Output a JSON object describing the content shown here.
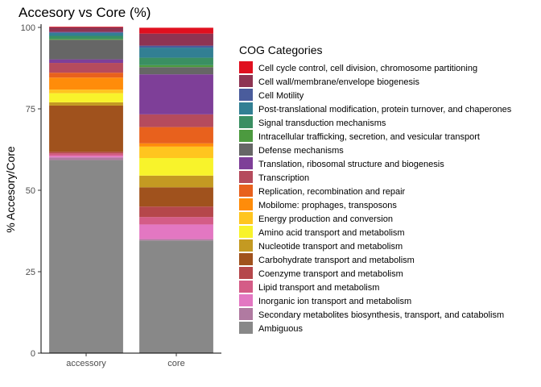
{
  "chart_data": {
    "type": "bar",
    "stacked": true,
    "title": "Accesory vs Core (%)",
    "xlabel": "",
    "ylabel": "% Accesory/Core",
    "ylim": [
      0,
      100
    ],
    "yticks": [
      0,
      25,
      50,
      75,
      100
    ],
    "categories": [
      "accessory",
      "core"
    ],
    "legend_title": "COG Categories",
    "legend_position": "right",
    "grid": false,
    "series": [
      {
        "name": "Ambiguous",
        "color": "#888888",
        "values": [
          59.3,
          34.6
        ]
      },
      {
        "name": "Secondary metabolites biosynthesis, transport, and catabolism",
        "color": "#B07AA1",
        "values": [
          0.8,
          0.4
        ]
      },
      {
        "name": "Inorganic ion transport and metabolism",
        "color": "#E377C2",
        "values": [
          0.5,
          4.5
        ]
      },
      {
        "name": "Lipid transport and metabolism",
        "color": "#D45C87",
        "values": [
          0.7,
          2.3
        ]
      },
      {
        "name": "Coenzyme transport and metabolism",
        "color": "#B5474B",
        "values": [
          0.5,
          3.2
        ]
      },
      {
        "name": "Carbohydrate transport and metabolism",
        "color": "#A0521D",
        "values": [
          14.2,
          5.9
        ]
      },
      {
        "name": "Nucleotide transport and metabolism",
        "color": "#C49A22",
        "values": [
          1.0,
          3.6
        ]
      },
      {
        "name": "Amino acid transport and metabolism",
        "color": "#F8F32B",
        "values": [
          2.8,
          5.4
        ]
      },
      {
        "name": "Energy production and conversion",
        "color": "#FFC51F",
        "values": [
          1.1,
          3.5
        ]
      },
      {
        "name": "Mobilome: prophages, transposons",
        "color": "#FF8C0A",
        "values": [
          3.7,
          1.0
        ]
      },
      {
        "name": "Replication, recombination and repair",
        "color": "#E8611D",
        "values": [
          1.5,
          5.0
        ]
      },
      {
        "name": "Transcription",
        "color": "#B54B5D",
        "values": [
          3.0,
          3.9
        ]
      },
      {
        "name": "Translation, ribosomal structure and biogenesis",
        "color": "#7E3F98",
        "values": [
          1.1,
          12.3
        ]
      },
      {
        "name": "Defense mechanisms",
        "color": "#666666",
        "values": [
          6.0,
          2.2
        ]
      },
      {
        "name": "Intracellular trafficking, secretion, and vesicular transport",
        "color": "#4C9A3F",
        "values": [
          0.3,
          0.6
        ]
      },
      {
        "name": "Signal transduction mechanisms",
        "color": "#3A8F62",
        "values": [
          0.9,
          2.3
        ]
      },
      {
        "name": "Post-translational modification, protein turnover, and chaperones",
        "color": "#327F93",
        "values": [
          0.9,
          3.1
        ]
      },
      {
        "name": "Cell Motility",
        "color": "#4A5C9C",
        "values": [
          0.3,
          0.6
        ]
      },
      {
        "name": "Cell wall/membrane/envelope biogenesis",
        "color": "#8E3452",
        "values": [
          1.4,
          3.7
        ]
      },
      {
        "name": "Cell cycle control, cell division, chromosome partitioning",
        "color": "#E0101F",
        "values": [
          0.2,
          1.8
        ]
      }
    ]
  }
}
